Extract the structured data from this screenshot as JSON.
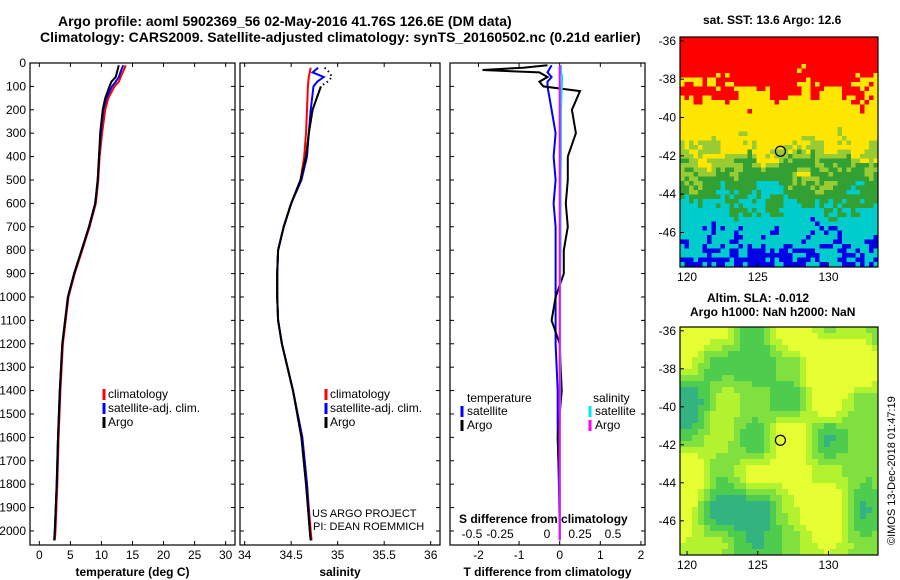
{
  "header": {
    "line1": "Argo profile: aoml 5902369_56 02-May-2016 41.76S 126.6E (DM data)",
    "line2": "Climatology: CARS2009. Satellite-adjusted climatology: synTS_20160502.nc (0.21d earlier)"
  },
  "colors": {
    "climatology": "#ff0000",
    "satellite": "#0000ff",
    "argo": "#000000",
    "sal_satellite": "#00e5ee",
    "sal_argo": "#ff00ff"
  },
  "depth_axis": {
    "ticks": [
      0,
      100,
      200,
      300,
      400,
      500,
      600,
      700,
      800,
      900,
      1000,
      1100,
      1200,
      1300,
      1400,
      1500,
      1600,
      1700,
      1800,
      1900,
      2000
    ],
    "min": 0,
    "max": 2060
  },
  "panels": {
    "temperature": {
      "xlabel": "temperature (deg C)",
      "xmin": -1.5,
      "xmax": 31.5,
      "ticks": [
        0,
        5,
        10,
        15,
        20,
        25,
        30
      ],
      "tick_labels": [
        "0",
        "5",
        "10",
        "15",
        "20",
        "25",
        "30"
      ],
      "legend": [
        "climatology",
        "satellite-adj. clim.",
        "Argo"
      ]
    },
    "salinity": {
      "xlabel": "salinity",
      "xmin": 33.95,
      "xmax": 36.1,
      "ticks": [
        34,
        34.5,
        35,
        35.5,
        36
      ],
      "tick_labels": [
        "34",
        "34.5",
        "35",
        "35.5",
        "36"
      ],
      "legend": [
        "climatology",
        "satellite-adj. clim.",
        "Argo"
      ],
      "credit1": "US ARGO PROJECT",
      "credit2": "PI: DEAN ROEMMICH"
    },
    "difference": {
      "xlabel": "T difference from climatology",
      "xmin": -2.7,
      "xmax": 2.1,
      "ticks": [
        -2,
        -1,
        0,
        1,
        2
      ],
      "tick_labels": [
        "-2",
        "-1",
        "0",
        "1",
        "2"
      ],
      "s_title": "S difference from climatology",
      "s_tick_labels": [
        "-0.5",
        "-0.25",
        "0",
        "0.25",
        "0.5"
      ],
      "legend_left_title": "temperature",
      "legend_right_title": "salinity",
      "legend_items": [
        "satellite",
        "Argo"
      ]
    }
  },
  "chart_data": [
    {
      "type": "line",
      "title": "temperature profile",
      "xlabel": "temperature (deg C)",
      "ylabel": "depth",
      "xlim": [
        -1.5,
        31.5
      ],
      "ylim": [
        2060,
        0
      ],
      "series": [
        {
          "name": "climatology",
          "depth": [
            10,
            30,
            60,
            80,
            100,
            150,
            200,
            300,
            400,
            500,
            600,
            700,
            800,
            900,
            1000,
            1200,
            1400,
            1600,
            1800,
            2000,
            2040
          ],
          "values": [
            13.9,
            13.6,
            13.1,
            12.8,
            12.1,
            11.1,
            10.6,
            10.1,
            9.7,
            9.5,
            9.1,
            8.1,
            6.9,
            5.7,
            4.7,
            3.8,
            3.4,
            3.1,
            2.9,
            2.6,
            2.5
          ]
        },
        {
          "name": "satellite-adj. clim.",
          "depth": [
            10,
            30,
            60,
            80,
            100,
            150,
            200,
            300,
            400,
            500,
            600,
            700,
            800,
            900,
            1000,
            1200,
            1400,
            1600,
            1800,
            2000,
            2040
          ],
          "values": [
            13.5,
            13.2,
            12.8,
            12.3,
            11.7,
            10.8,
            10.3,
            9.9,
            9.6,
            9.4,
            9.0,
            8.0,
            6.8,
            5.6,
            4.6,
            3.7,
            3.3,
            3.0,
            2.8,
            2.5,
            2.4
          ]
        },
        {
          "name": "Argo",
          "depth": [
            10,
            30,
            60,
            80,
            100,
            150,
            200,
            300,
            400,
            500,
            600,
            700,
            800,
            900,
            1000,
            1200,
            1400,
            1600,
            1800,
            2000,
            2040
          ],
          "values": [
            12.8,
            12.6,
            12.3,
            11.6,
            11.3,
            10.6,
            10.2,
            9.8,
            9.6,
            9.4,
            9.0,
            8.0,
            6.8,
            5.6,
            4.6,
            3.7,
            3.3,
            3.0,
            2.8,
            2.5,
            2.4
          ]
        }
      ]
    },
    {
      "type": "line",
      "title": "salinity profile",
      "xlabel": "salinity",
      "ylabel": "depth",
      "xlim": [
        33.95,
        36.1
      ],
      "ylim": [
        2060,
        0
      ],
      "series": [
        {
          "name": "climatology",
          "depth": [
            20,
            60,
            100,
            200,
            300,
            400,
            500,
            600,
            700,
            800,
            900,
            1000,
            1100,
            1200,
            1400,
            1600,
            1800,
            2000,
            2040
          ],
          "values": [
            34.71,
            34.69,
            34.68,
            34.67,
            34.66,
            34.64,
            34.6,
            34.5,
            34.42,
            34.36,
            34.35,
            34.35,
            34.36,
            34.4,
            34.52,
            34.62,
            34.67,
            34.71,
            34.72
          ]
        },
        {
          "name": "satellite-adj. clim.",
          "depth": [
            20,
            40,
            60,
            80,
            100,
            200,
            300,
            400,
            500,
            600,
            700,
            800,
            900,
            1000,
            1100,
            1200,
            1400,
            1600,
            1800,
            2000,
            2040
          ],
          "values": [
            34.79,
            34.73,
            34.85,
            34.78,
            34.74,
            34.71,
            34.69,
            34.67,
            34.61,
            34.5,
            34.42,
            34.36,
            34.35,
            34.35,
            34.36,
            34.4,
            34.52,
            34.62,
            34.67,
            34.7,
            34.71
          ]
        },
        {
          "name": "Argo",
          "depth": [
            20,
            40,
            60,
            80,
            100,
            200,
            300,
            400,
            500,
            600,
            700,
            800,
            900,
            1000,
            1100,
            1200,
            1400,
            1600,
            1800,
            2000,
            2040
          ],
          "values": [
            34.86,
            34.91,
            34.94,
            34.89,
            34.82,
            34.73,
            34.69,
            34.66,
            34.6,
            34.5,
            34.42,
            34.36,
            34.35,
            34.35,
            34.36,
            34.4,
            34.52,
            34.61,
            34.66,
            34.7,
            34.71
          ]
        }
      ]
    },
    {
      "type": "line",
      "title": "difference from climatology",
      "xlabel": "T difference from climatology",
      "ylabel": "depth",
      "xlim": [
        -2.7,
        2.1
      ],
      "ylim": [
        2060,
        0
      ],
      "series": [
        {
          "name": "temperature satellite",
          "depth": [
            10,
            40,
            60,
            80,
            100,
            200,
            300,
            400,
            500,
            600,
            700,
            800,
            900,
            1000,
            1200,
            1400,
            1600,
            1800,
            2000,
            2040
          ],
          "values": [
            -0.2,
            -0.3,
            -0.2,
            -0.3,
            -0.3,
            -0.2,
            -0.1,
            -0.15,
            -0.1,
            -0.15,
            -0.1,
            -0.1,
            -0.1,
            -0.1,
            -0.1,
            -0.05,
            -0.05,
            -0.02,
            0,
            0
          ]
        },
        {
          "name": "temperature Argo",
          "depth": [
            10,
            20,
            30,
            40,
            60,
            80,
            100,
            120,
            200,
            300,
            400,
            500,
            600,
            700,
            800,
            900,
            1000,
            1100,
            1200,
            1400,
            1600,
            1800,
            2000,
            2040
          ],
          "values": [
            -0.3,
            -0.9,
            -1.9,
            -0.5,
            -0.3,
            -0.5,
            -0.4,
            0.5,
            0.3,
            0.4,
            0.2,
            0.2,
            0.15,
            0.2,
            0.1,
            0.1,
            -0.1,
            -0.2,
            0,
            0.05,
            -0.05,
            0,
            0,
            0
          ]
        },
        {
          "name": "salinity satellite",
          "depth": [
            10,
            40,
            60,
            100,
            200,
            300,
            400,
            500,
            600,
            700,
            800,
            900,
            1000,
            1200,
            1400,
            1600,
            1800,
            2000,
            2040
          ],
          "values": [
            0.03,
            0.03,
            0.06,
            0.05,
            0.03,
            0.03,
            0.03,
            0.02,
            0.02,
            0.02,
            0.02,
            0.01,
            0.01,
            0.01,
            0.01,
            0,
            0,
            0,
            0
          ]
        },
        {
          "name": "salinity Argo",
          "depth": [
            10,
            2040
          ],
          "values": [
            0,
            0
          ]
        }
      ]
    }
  ],
  "map_sst": {
    "title": "sat. SST: 13.6 Argo: 12.6",
    "x_tick_labels": [
      "120",
      "125",
      "130"
    ],
    "y_tick_labels": [
      "-36",
      "-38",
      "-40",
      "-42",
      "-44",
      "-46"
    ],
    "lon_range": [
      119.5,
      133.5
    ],
    "lat_range": [
      -47.8,
      -35.8
    ],
    "argo_position": {
      "lon": 126.6,
      "lat": -41.76
    }
  },
  "map_sla": {
    "title1": "Altim. SLA: -0.012",
    "title2": "Argo h1000: NaN h2000: NaN",
    "x_tick_labels": [
      "120",
      "125",
      "130"
    ],
    "y_tick_labels": [
      "-36",
      "-38",
      "-40",
      "-42",
      "-44",
      "-46"
    ],
    "lon_range": [
      119.5,
      133.5
    ],
    "lat_range": [
      -47.8,
      -35.8
    ],
    "argo_position": {
      "lon": 126.6,
      "lat": -41.76
    }
  },
  "watermark": "©IMOS 13-Dec-2018 01:47:19"
}
